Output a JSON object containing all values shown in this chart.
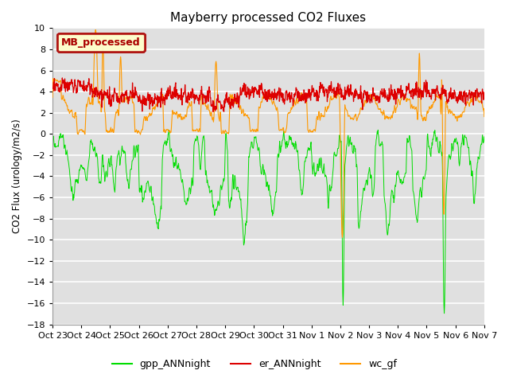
{
  "title": "Mayberry processed CO2 Fluxes",
  "ylabel": "CO2 Flux (urology/m2/s)",
  "ylim": [
    -18,
    10
  ],
  "yticks": [
    10,
    8,
    6,
    4,
    2,
    0,
    -2,
    -4,
    -6,
    -8,
    -10,
    -12,
    -14,
    -16,
    -18
  ],
  "xtick_labels": [
    "Oct 23",
    "Oct 24",
    "Oct 25",
    "Oct 26",
    "Oct 27",
    "Oct 28",
    "Oct 29",
    "Oct 30",
    "Oct 31",
    "Nov 1",
    "Nov 2",
    "Nov 3",
    "Nov 4",
    "Nov 5",
    "Nov 6",
    "Nov 7"
  ],
  "bg_color": "#e0e0e0",
  "fig_bg_color": "#ffffff",
  "grid_color": "#ffffff",
  "line_green": "#00dd00",
  "line_red": "#dd0000",
  "line_orange": "#ff9900",
  "legend_label": "MB_processed",
  "legend_bg": "#ffffcc",
  "legend_border": "#aa0000",
  "series_labels": [
    "gpp_ANNnight",
    "er_ANNnight",
    "wc_gf"
  ],
  "n_points": 1200
}
